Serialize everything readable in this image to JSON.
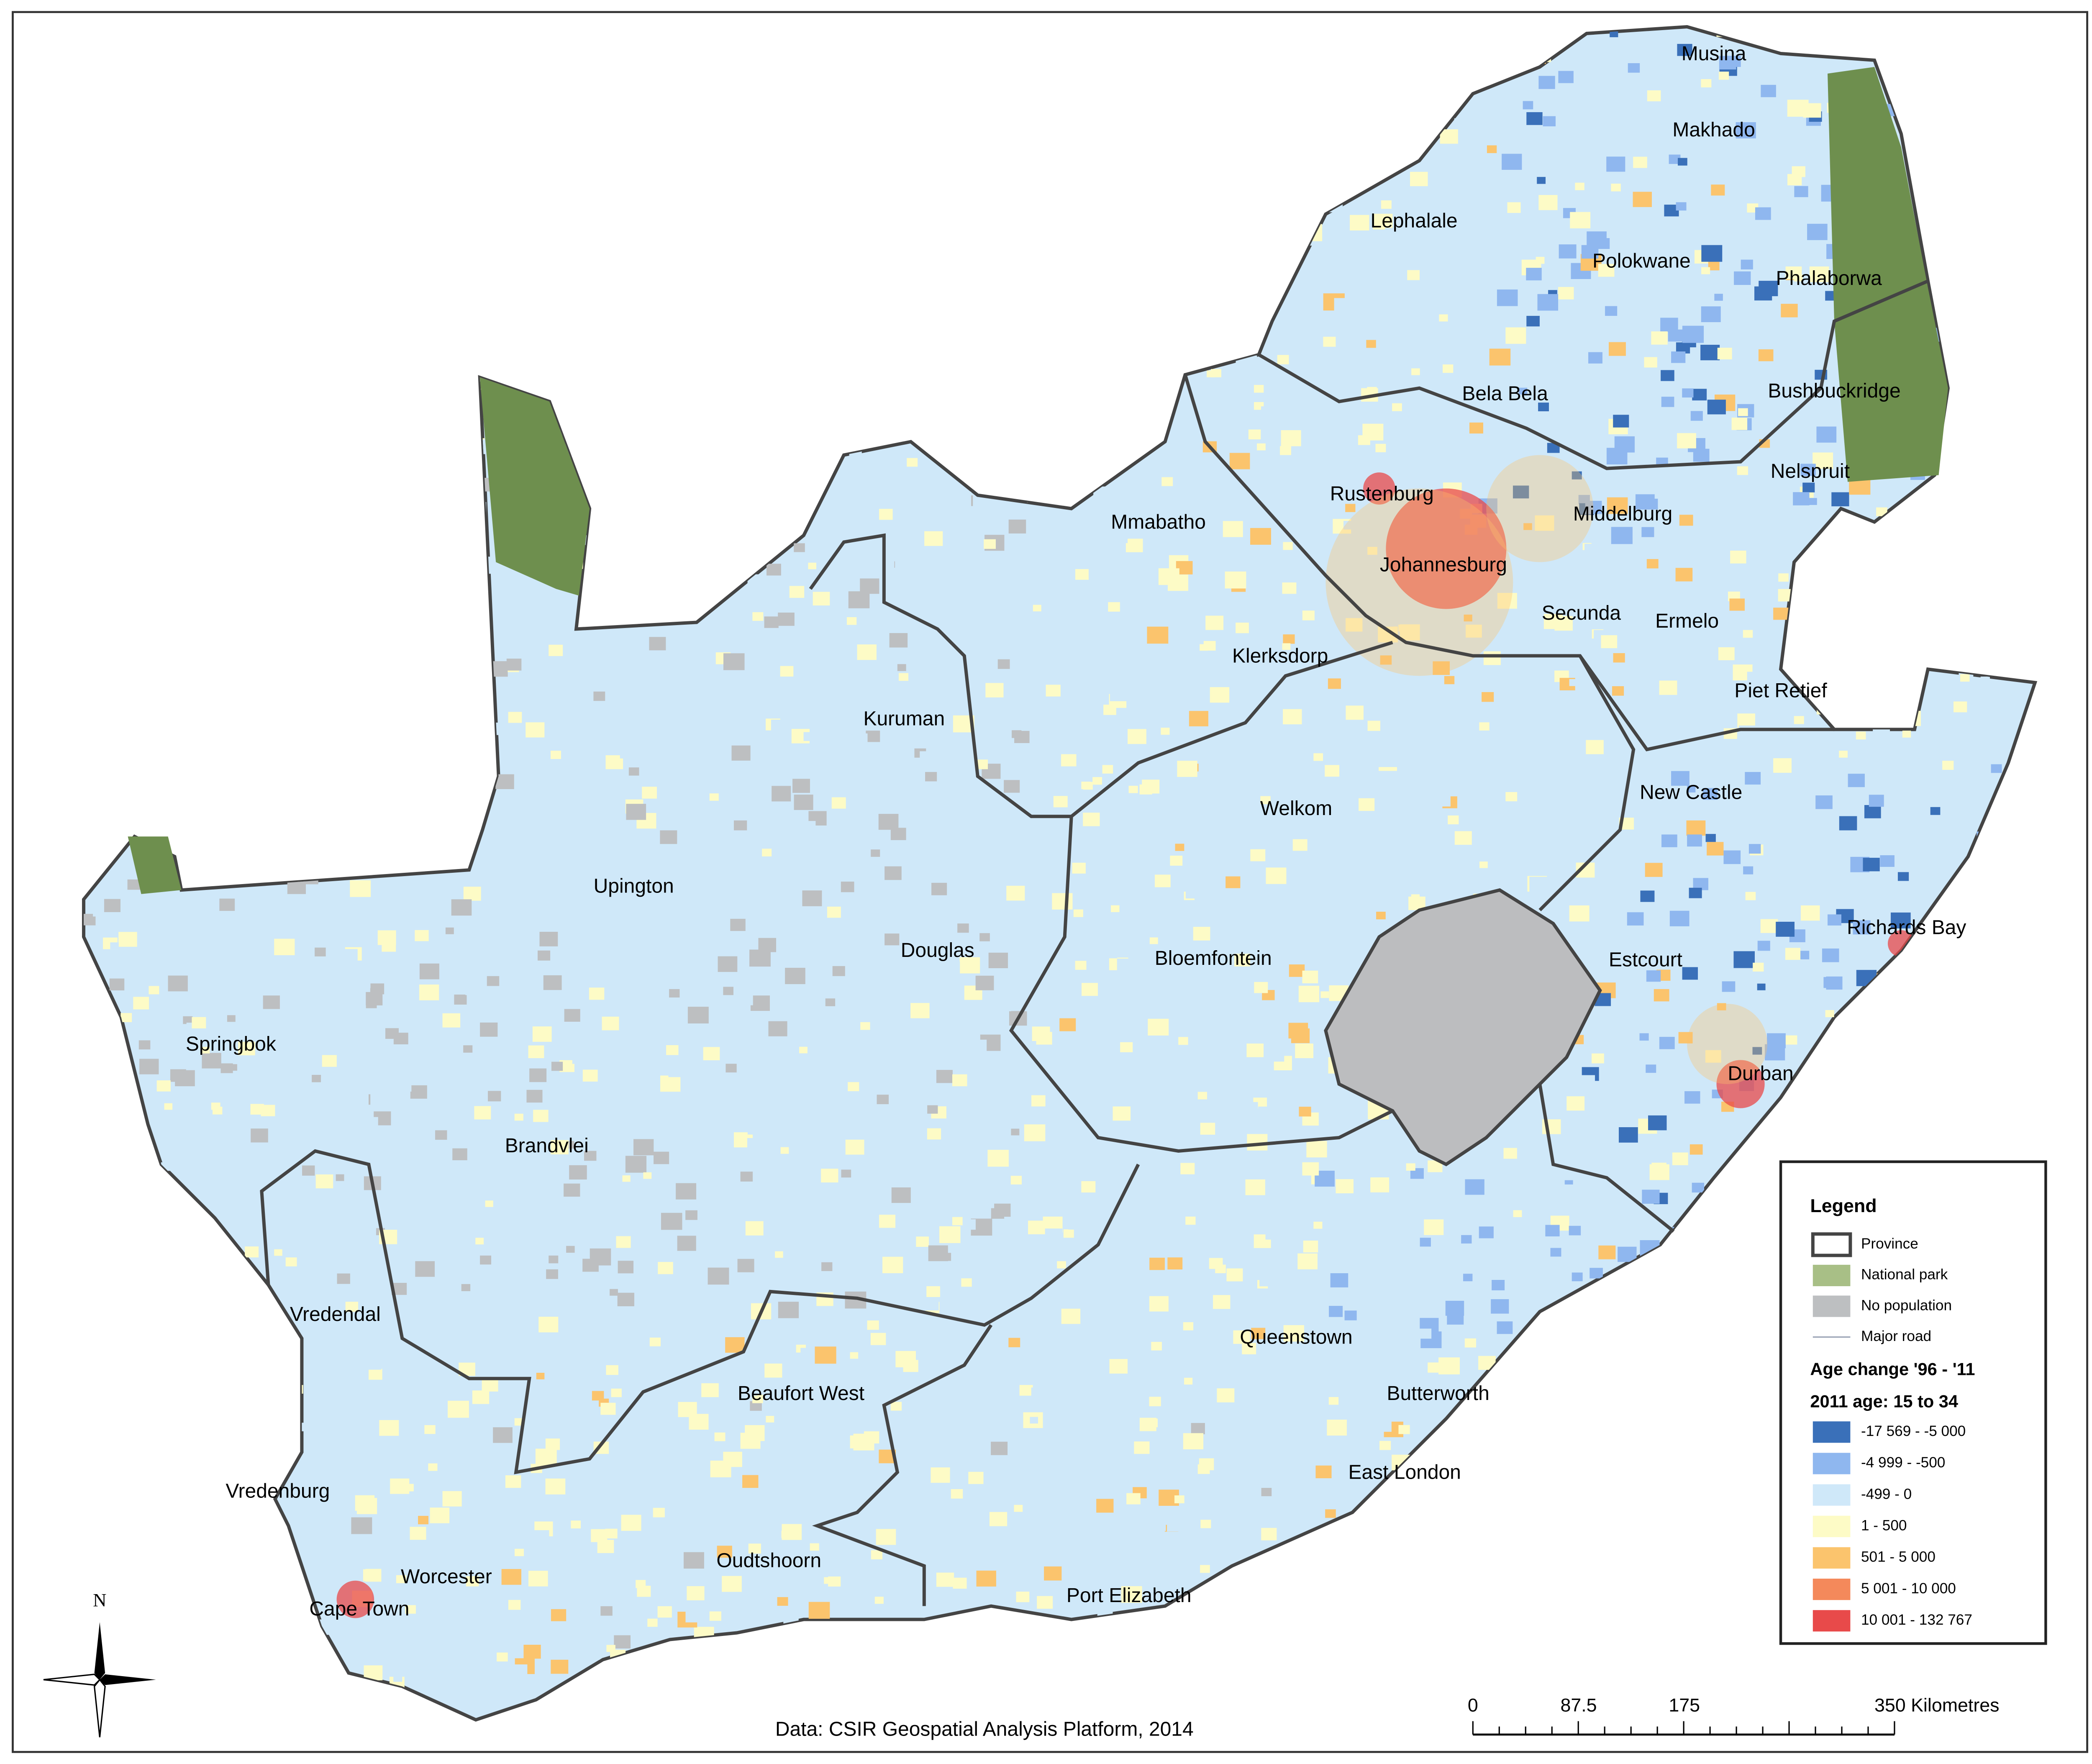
{
  "map": {
    "cities": [
      "Musina",
      "Makhado",
      "Lephalale",
      "Polokwane",
      "Phalaborwa",
      "Bela Bela",
      "Bushbuckridge",
      "Rustenburg",
      "Nelspruit",
      "Mmabatho",
      "Middelburg",
      "Johannesburg",
      "Secunda",
      "Ermelo",
      "Klerksdorp",
      "Piet Retief",
      "Kuruman",
      "Welkom",
      "New Castle",
      "Upington",
      "Richards Bay",
      "Douglas",
      "Bloemfontein",
      "Estcourt",
      "Springbok",
      "Durban",
      "Brandvlei",
      "Vredendal",
      "Queenstown",
      "Beaufort West",
      "Butterworth",
      "East London",
      "Vredenburg",
      "Worcester",
      "Oudtshoorn",
      "Port Elizabeth",
      "Cape Town"
    ],
    "north": "N",
    "source": "Data: CSIR Geospatial Analysis Platform, 2014",
    "scale": [
      "0",
      "87.5",
      "175",
      "350 Kilometres"
    ]
  },
  "legend": {
    "title": "Legend",
    "items": [
      {
        "label": "Province",
        "color": "#ffffff"
      },
      {
        "label": "National park",
        "color": "#a8bf86"
      },
      {
        "label": "No population",
        "color": "#bdbfc1"
      },
      {
        "label": "Major road",
        "color": "#9aa3b5"
      }
    ],
    "heading": "Age change '96 - '11",
    "subheading": "2011 age: 15 to 34",
    "classes": [
      {
        "label": "-17 569 - -5 000",
        "color": "#3a70b9"
      },
      {
        "label": "-4 999 - -500",
        "color": "#8fb7ef"
      },
      {
        "label": "-499 - 0",
        "color": "#cfe8f9"
      },
      {
        "label": "1 - 500",
        "color": "#fdfbc6"
      },
      {
        "label": "501 - 5 000",
        "color": "#fbc46d"
      },
      {
        "label": "5 001 - 10 000",
        "color": "#f4895b"
      },
      {
        "label": "10 001 - 132 767",
        "color": "#e84a4a"
      }
    ]
  }
}
